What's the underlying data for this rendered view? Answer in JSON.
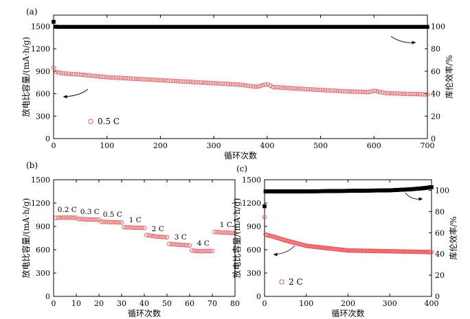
{
  "chart_data": [
    {
      "type": "scatter",
      "panel_label": "(a)",
      "xlabel": "循环次数",
      "ylabel": "放电比容量/(mA·h/g)",
      "y2label": "库伦效率/%",
      "xlim": [
        0,
        700
      ],
      "ylim": [
        0,
        1650
      ],
      "y2lim": [
        0,
        110
      ],
      "xticks": [
        0,
        100,
        200,
        300,
        400,
        500,
        600,
        700
      ],
      "yticks": [
        0,
        300,
        600,
        900,
        1200,
        1500
      ],
      "y2ticks": [
        0,
        20,
        40,
        60,
        80,
        100
      ],
      "legend": "0.5 C",
      "series": [
        {
          "role": "capacity",
          "axis": "left",
          "color": "#e8585c",
          "marker": "open-circle",
          "x": [
            0,
            1,
            2,
            5,
            10,
            20,
            50,
            100,
            150,
            200,
            250,
            300,
            350,
            380,
            390,
            400,
            410,
            450,
            500,
            550,
            590,
            600,
            620,
            650,
            700
          ],
          "y": [
            950,
            970,
            900,
            890,
            880,
            870,
            855,
            820,
            800,
            780,
            760,
            740,
            720,
            690,
            710,
            730,
            690,
            670,
            650,
            630,
            620,
            640,
            610,
            600,
            590
          ]
        },
        {
          "role": "coulombic-efficiency",
          "axis": "right",
          "color": "#000000",
          "marker": "filled-square",
          "x": [
            0,
            1,
            2,
            5,
            50,
            100,
            200,
            300,
            400,
            500,
            600,
            700
          ],
          "y": [
            104,
            102,
            100,
            99.5,
            99.5,
            99.5,
            99.5,
            99.5,
            99.5,
            99.5,
            99.5,
            99.5
          ]
        }
      ]
    },
    {
      "type": "scatter",
      "panel_label": "(b)",
      "xlabel": "循环次数",
      "ylabel": "放电比容量/(mA·h/g)",
      "xlim": [
        0,
        80
      ],
      "ylim": [
        0,
        1500
      ],
      "xticks": [
        0,
        10,
        20,
        30,
        40,
        50,
        60,
        70,
        80
      ],
      "yticks": [
        0,
        300,
        600,
        900,
        1200,
        1500
      ],
      "series": [
        {
          "role": "capacity",
          "color": "#e8585c",
          "marker": "open-circle",
          "x": [
            1,
            5,
            10,
            11,
            15,
            20,
            21,
            25,
            30,
            31,
            35,
            40,
            41,
            45,
            50,
            51,
            55,
            60,
            61,
            65,
            70,
            71,
            75,
            80
          ],
          "y": [
            1010,
            1015,
            1010,
            995,
            990,
            985,
            960,
            955,
            950,
            890,
            885,
            880,
            790,
            770,
            760,
            675,
            665,
            655,
            590,
            580,
            585,
            830,
            820,
            815
          ]
        }
      ],
      "rate_labels": [
        {
          "text": "0.2 C",
          "x": 6
        },
        {
          "text": "0.3 C",
          "x": 16
        },
        {
          "text": "0.5 C",
          "x": 26
        },
        {
          "text": "1 C",
          "x": 36
        },
        {
          "text": "2 C",
          "x": 46
        },
        {
          "text": "3 C",
          "x": 56
        },
        {
          "text": "4 C",
          "x": 66
        },
        {
          "text": "1 C",
          "x": 76
        }
      ]
    },
    {
      "type": "scatter",
      "panel_label": "(c)",
      "xlabel": "循环次数",
      "ylabel": "放电比容量/(mA·h/g)",
      "y2label": "库伦效率/%",
      "xlim": [
        0,
        400
      ],
      "ylim": [
        0,
        1500
      ],
      "y2lim": [
        0,
        110
      ],
      "xticks": [
        0,
        100,
        200,
        300,
        400
      ],
      "yticks": [
        0,
        300,
        600,
        900,
        1200,
        1500
      ],
      "y2ticks": [
        0,
        20,
        40,
        60,
        80,
        100
      ],
      "legend": "2 C",
      "series": [
        {
          "role": "capacity",
          "axis": "left",
          "color": "#e8585c",
          "marker": "open-circle",
          "x": [
            0,
            1,
            2,
            5,
            20,
            50,
            100,
            150,
            200,
            250,
            300,
            350,
            400
          ],
          "y": [
            1020,
            900,
            800,
            790,
            770,
            720,
            650,
            620,
            590,
            585,
            580,
            575,
            570
          ]
        },
        {
          "role": "coulombic-efficiency",
          "axis": "right",
          "color": "#000000",
          "marker": "filled-square",
          "x": [
            0,
            1,
            5,
            50,
            100,
            200,
            300,
            350,
            380,
            400
          ],
          "y": [
            85,
            99,
            99,
            99,
            99,
            99.5,
            100,
            101,
            102,
            103
          ]
        }
      ]
    }
  ]
}
